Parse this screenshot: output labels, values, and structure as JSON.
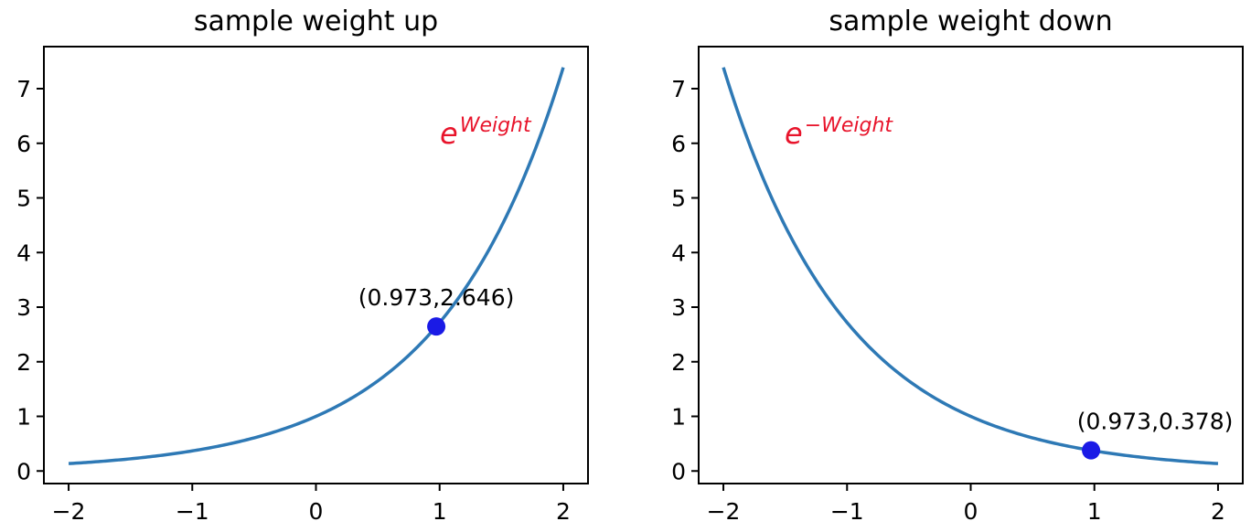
{
  "chart_data": [
    {
      "type": "line",
      "title": "sample weight up",
      "xlabel": "",
      "ylabel": "",
      "xlim": [
        -2.2,
        2.2
      ],
      "ylim": [
        -0.23,
        7.77
      ],
      "xticks": [
        -2,
        -1,
        0,
        1,
        2
      ],
      "xtick_labels": [
        "−2",
        "−1",
        "0",
        "1",
        "2"
      ],
      "yticks": [
        0,
        1,
        2,
        3,
        4,
        5,
        6,
        7
      ],
      "ytick_labels": [
        "0",
        "1",
        "2",
        "3",
        "4",
        "5",
        "6",
        "7"
      ],
      "grid": false,
      "series": [
        {
          "function": "exp(x)",
          "color": "#2e79b5",
          "x": [
            -2.0,
            -1.5,
            -1.0,
            -0.5,
            0.0,
            0.5,
            1.0,
            1.5,
            2.0
          ],
          "y": [
            0.135,
            0.223,
            0.368,
            0.607,
            1.0,
            1.649,
            2.718,
            4.482,
            7.389
          ]
        }
      ],
      "point": {
        "x": 0.973,
        "y": 2.646,
        "color": "#1a1ae6",
        "label": "(0.973,2.646)"
      },
      "formula": {
        "base": "e",
        "superscript": "Weight",
        "color": "#e8142b"
      }
    },
    {
      "type": "line",
      "title": "sample weight down",
      "xlabel": "",
      "ylabel": "",
      "xlim": [
        -2.2,
        2.2
      ],
      "ylim": [
        -0.23,
        7.77
      ],
      "xticks": [
        -2,
        -1,
        0,
        1,
        2
      ],
      "xtick_labels": [
        "−2",
        "−1",
        "0",
        "1",
        "2"
      ],
      "yticks": [
        0,
        1,
        2,
        3,
        4,
        5,
        6,
        7
      ],
      "ytick_labels": [
        "0",
        "1",
        "2",
        "3",
        "4",
        "5",
        "6",
        "7"
      ],
      "grid": false,
      "series": [
        {
          "function": "exp(-x)",
          "color": "#2e79b5",
          "x": [
            -2.0,
            -1.5,
            -1.0,
            -0.5,
            0.0,
            0.5,
            1.0,
            1.5,
            2.0
          ],
          "y": [
            7.389,
            4.482,
            2.718,
            1.649,
            1.0,
            0.607,
            0.368,
            0.223,
            0.135
          ]
        }
      ],
      "point": {
        "x": 0.973,
        "y": 0.378,
        "color": "#1a1ae6",
        "label": "(0.973,0.378)"
      },
      "formula": {
        "base": "e",
        "superscript": "−Weight",
        "color": "#e8142b"
      }
    }
  ]
}
